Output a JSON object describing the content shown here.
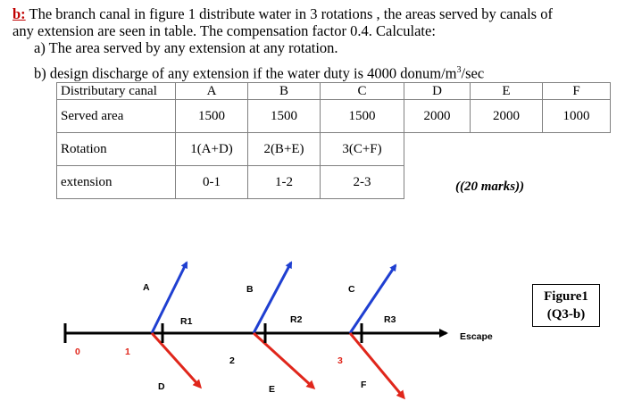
{
  "question": {
    "label": "b:",
    "line1": " The branch canal in figure 1 distribute water in 3 rotations , the areas served by canals of",
    "line2": "any extension are  seen in table. The compensation factor 0.4. Calculate:",
    "part_a": "a) The area served by any extension at any rotation.",
    "part_b_pre": "b) design discharge of any extension  if the water duty is 4000 donum/m",
    "part_b_sup": "3",
    "part_b_post": "/sec"
  },
  "table": {
    "header": [
      "Distributary canal",
      "A",
      "B",
      "C",
      "D",
      "E",
      "F"
    ],
    "rows": [
      {
        "label": "Served area",
        "cells": [
          "1500",
          "1500",
          "1500",
          "2000",
          "2000",
          "1000"
        ]
      },
      {
        "label": "Rotation",
        "cells": [
          "1(A+D)",
          "2(B+E)",
          "3(C+F)"
        ]
      },
      {
        "label": "extension",
        "cells": [
          "0-1",
          "1-2",
          "2-3"
        ]
      }
    ]
  },
  "marks": "((20 marks))",
  "figure": {
    "caption_line1": "Figure1",
    "caption_line2": "(Q3-b)",
    "canal_labels": {
      "A": "A",
      "B": "B",
      "C": "C",
      "D": "D",
      "E": "E",
      "F": "F"
    },
    "regulators": {
      "R1": "R1",
      "R2": "R2",
      "R3": "R3"
    },
    "points": {
      "p0": "0",
      "p1": "1",
      "p2": "2",
      "p3": "3"
    },
    "escape": "Escape",
    "colors": {
      "upper": "#1f3fd1",
      "lower": "#e0261b",
      "main": "#000000"
    }
  }
}
